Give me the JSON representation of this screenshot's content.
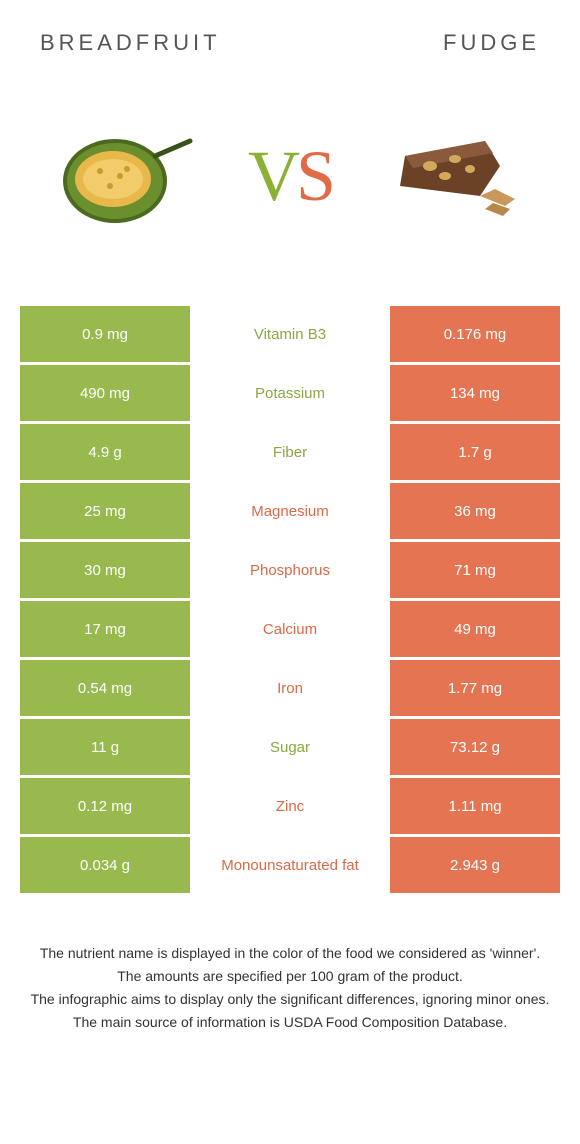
{
  "titles": {
    "left": "BREADFRUIT",
    "right": "FUDGE"
  },
  "vs": {
    "v": "V",
    "s": "S"
  },
  "colors": {
    "left_bg": "#97b94e",
    "right_bg": "#e47452",
    "mid_bg": "#ffffff",
    "left_text": "#8aa843",
    "right_text": "#d96a48"
  },
  "rows": [
    {
      "left": "0.9 mg",
      "mid": "Vitamin B3",
      "right": "0.176 mg",
      "winner": "left"
    },
    {
      "left": "490 mg",
      "mid": "Potassium",
      "right": "134 mg",
      "winner": "left"
    },
    {
      "left": "4.9 g",
      "mid": "Fiber",
      "right": "1.7 g",
      "winner": "left"
    },
    {
      "left": "25 mg",
      "mid": "Magnesium",
      "right": "36 mg",
      "winner": "right"
    },
    {
      "left": "30 mg",
      "mid": "Phosphorus",
      "right": "71 mg",
      "winner": "right"
    },
    {
      "left": "17 mg",
      "mid": "Calcium",
      "right": "49 mg",
      "winner": "right"
    },
    {
      "left": "0.54 mg",
      "mid": "Iron",
      "right": "1.77 mg",
      "winner": "right"
    },
    {
      "left": "11 g",
      "mid": "Sugar",
      "right": "73.12 g",
      "winner": "left"
    },
    {
      "left": "0.12 mg",
      "mid": "Zinc",
      "right": "1.11 mg",
      "winner": "right"
    },
    {
      "left": "0.034 g",
      "mid": "Monounsaturated fat",
      "right": "2.943 g",
      "winner": "right"
    }
  ],
  "footnotes": [
    "The nutrient name is displayed in the color of the food we considered as 'winner'.",
    "The amounts are specified per 100 gram of the product.",
    "The infographic aims to display only the significant differences, ignoring minor ones.",
    "The main source of information is USDA Food Composition Database."
  ]
}
